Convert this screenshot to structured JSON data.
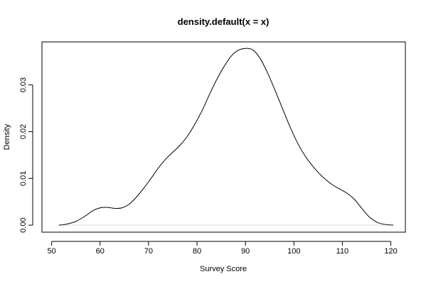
{
  "chart_data": {
    "type": "line",
    "title": "density.default(x = x)",
    "xlabel": "Survey Score",
    "ylabel": "Density",
    "xlim": [
      48,
      123
    ],
    "ylim": [
      -0.0015,
      0.0392
    ],
    "x_ticks": [
      50,
      60,
      70,
      80,
      90,
      100,
      110,
      120
    ],
    "x_tick_labels": [
      "50",
      "60",
      "70",
      "80",
      "90",
      "100",
      "110",
      "120"
    ],
    "y_ticks": [
      0.0,
      0.01,
      0.02,
      0.03
    ],
    "y_tick_labels": [
      "0.00",
      "0.01",
      "0.02",
      "0.03"
    ],
    "zero_line": true,
    "grid": false,
    "line_color": "#000000",
    "zero_line_color": "#dddddd",
    "series": [
      {
        "x": [
          51.5,
          53.0,
          55.0,
          57.0,
          58.5,
          60.0,
          61.5,
          63.0,
          64.5,
          66.0,
          67.5,
          69.0,
          70.5,
          72.0,
          73.5,
          75.0,
          76.5,
          78.0,
          79.5,
          81.0,
          82.5,
          84.0,
          85.5,
          87.0,
          88.5,
          90.0,
          91.5,
          93.0,
          94.5,
          96.0,
          97.5,
          99.0,
          100.5,
          102.0,
          103.5,
          105.0,
          106.5,
          108.0,
          109.5,
          111.0,
          112.5,
          114.0,
          115.5,
          117.0,
          118.5,
          120.5
        ],
        "y": [
          0.0,
          0.0002,
          0.0008,
          0.002,
          0.0031,
          0.0037,
          0.0038,
          0.0036,
          0.0037,
          0.0045,
          0.006,
          0.0079,
          0.01,
          0.0122,
          0.0141,
          0.0156,
          0.0171,
          0.019,
          0.0215,
          0.0244,
          0.0278,
          0.031,
          0.0338,
          0.0361,
          0.0374,
          0.0378,
          0.0375,
          0.0357,
          0.0327,
          0.0291,
          0.0253,
          0.0215,
          0.0181,
          0.0153,
          0.0131,
          0.0113,
          0.0098,
          0.0086,
          0.0077,
          0.0068,
          0.0055,
          0.0036,
          0.0018,
          0.0007,
          0.0002,
          0.0
        ]
      }
    ]
  }
}
